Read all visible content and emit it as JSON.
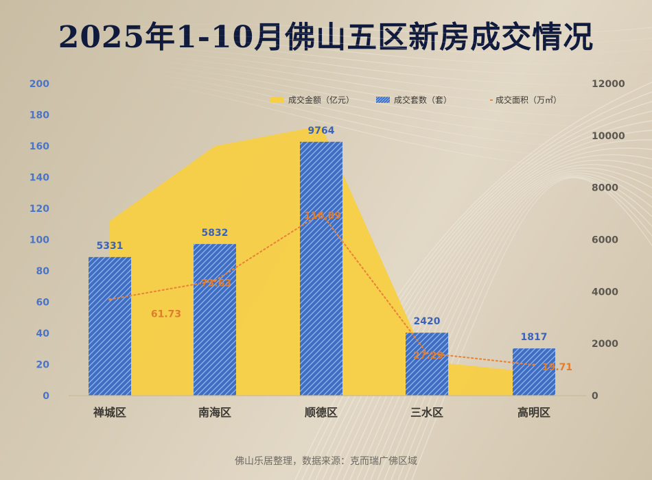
{
  "title": "2025年1-10月佛山五区新房成交情况",
  "footer": "佛山乐居整理，数据来源：克而瑞广佛区域",
  "chart_data": {
    "type": "bar",
    "categories": [
      "禅城区",
      "南海区",
      "顺德区",
      "三水区",
      "高明区"
    ],
    "y_left": {
      "min": 0,
      "max": 200,
      "ticks": [
        0,
        20,
        40,
        60,
        80,
        100,
        120,
        140,
        160,
        180,
        200
      ]
    },
    "y_right": {
      "min": 0,
      "max": 12000,
      "ticks": [
        0,
        2000,
        4000,
        6000,
        8000,
        10000,
        12000
      ]
    },
    "legend": {
      "position": "top-right"
    },
    "grid": false,
    "series": [
      {
        "name": "成交金额（亿元）",
        "type": "area",
        "axis": "left",
        "color": "#f7cf45",
        "values": [
          112,
          160,
          173,
          22,
          15
        ]
      },
      {
        "name": "成交套数（套）",
        "type": "bar",
        "axis": "right",
        "color": "#3f6fc4",
        "values": [
          5331,
          5832,
          9764,
          2420,
          1817
        ],
        "labels": [
          "5331",
          "5832",
          "9764",
          "2420",
          "1817"
        ]
      },
      {
        "name": "成交面积（万㎡）",
        "type": "line",
        "axis": "left",
        "color": "#e8853a",
        "values": [
          61.73,
          73.63,
          116.89,
          27.29,
          19.71
        ],
        "labels": [
          "61.73",
          "73.63",
          "116.89",
          "27.29",
          "19.71"
        ]
      }
    ]
  }
}
